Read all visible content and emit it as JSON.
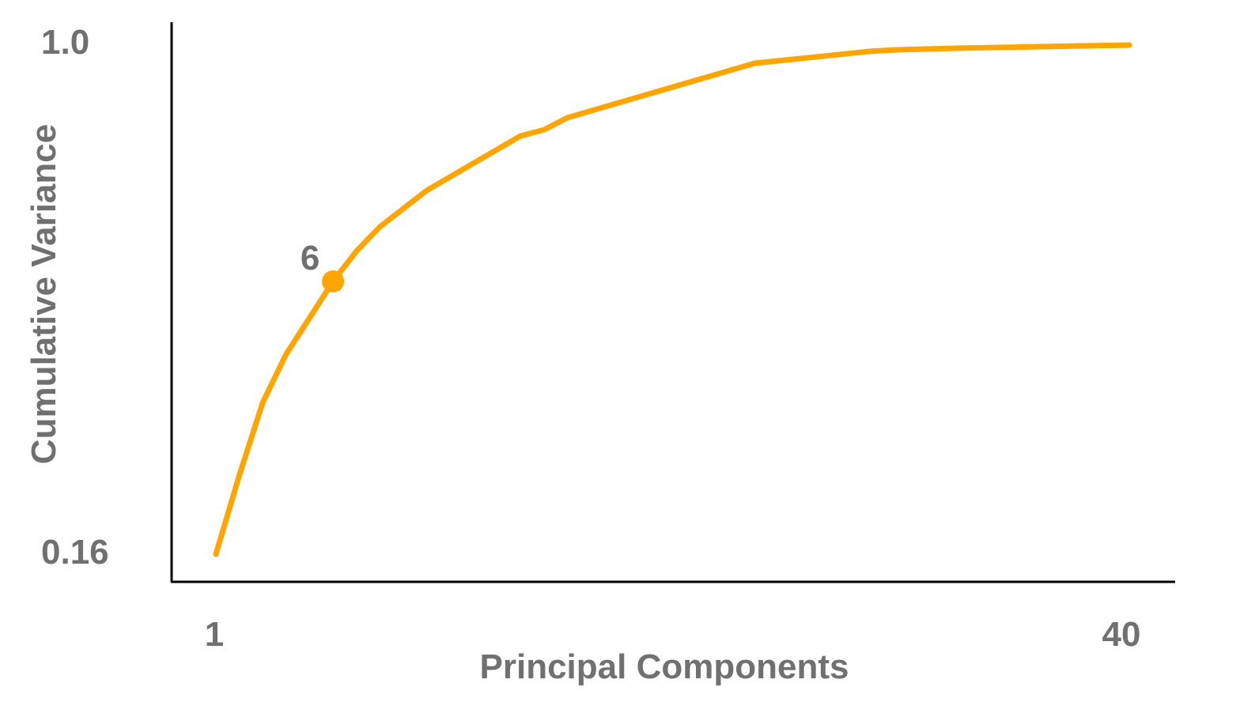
{
  "chart_data": {
    "type": "line",
    "title": "",
    "xlabel": "Principal Components",
    "ylabel": "Cumulative Variance",
    "xlim": [
      1,
      40
    ],
    "ylim": [
      0.16,
      1.0
    ],
    "x_ticks": [
      "1",
      "40"
    ],
    "y_ticks": [
      "0.16",
      "1.0"
    ],
    "grid": false,
    "legend": "none",
    "line_color": "#FFA500",
    "text_color": "#707070",
    "axis_color": "#000000",
    "series": [
      {
        "x": [
          1,
          2,
          3,
          4,
          5,
          6,
          7,
          8,
          10,
          14,
          15,
          16,
          24,
          29,
          30,
          33,
          40
        ],
        "values": [
          0.16,
          0.29,
          0.41,
          0.49,
          0.55,
          0.61,
          0.66,
          0.7,
          0.76,
          0.85,
          0.86,
          0.88,
          0.97,
          0.99,
          0.992,
          0.995,
          1.0
        ]
      }
    ],
    "highlight": {
      "x": 6,
      "value": 0.61,
      "label": "6"
    }
  }
}
